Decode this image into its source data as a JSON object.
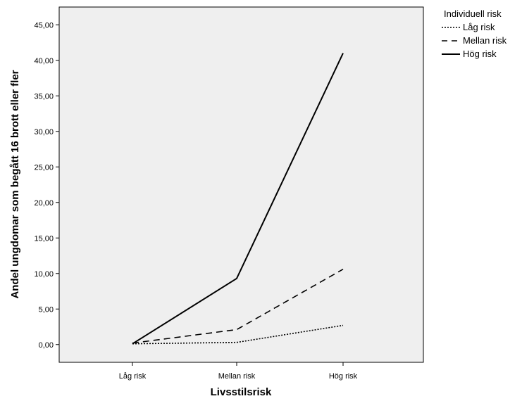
{
  "chart_data": {
    "type": "line",
    "categories": [
      "Låg risk",
      "Mellan risk",
      "Hög risk"
    ],
    "series": [
      {
        "name": "Låg risk",
        "values": [
          0.1,
          0.3,
          2.7
        ],
        "style": "dotted"
      },
      {
        "name": "Mellan risk",
        "values": [
          0.2,
          2.1,
          10.6
        ],
        "style": "dashed"
      },
      {
        "name": "Hög risk",
        "values": [
          0.1,
          9.3,
          41.0
        ],
        "style": "solid"
      }
    ],
    "title": "",
    "xlabel": "Livsstilsrisk",
    "ylabel": "Andel ungdomar som begått 16 brott eller fler",
    "ylim": [
      -2.5,
      47.5
    ],
    "yticks": [
      0,
      5,
      10,
      15,
      20,
      25,
      30,
      35,
      40,
      45
    ],
    "ytick_labels": [
      "0,00",
      "5,00",
      "10,00",
      "15,00",
      "20,00",
      "25,00",
      "30,00",
      "35,00",
      "40,00",
      "45,00"
    ],
    "legend_title": "Individuell risk",
    "legend_position": "top-right-outside",
    "plot_background": "#efefef",
    "line_color": "#000000",
    "grid": false
  }
}
